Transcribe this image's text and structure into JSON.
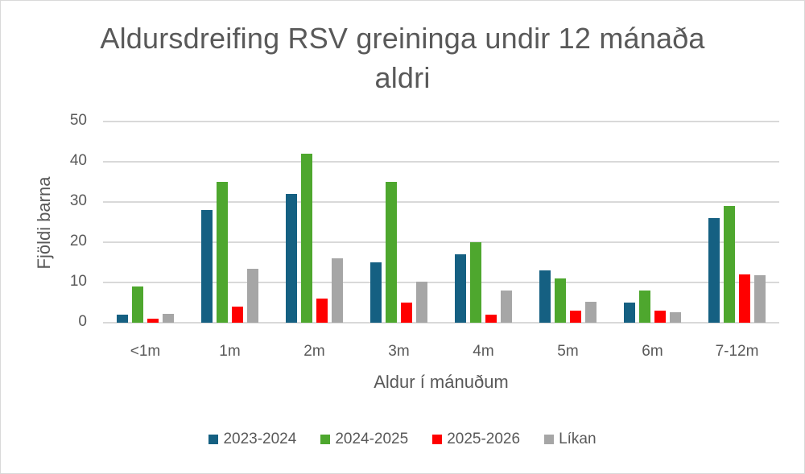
{
  "chart_data": {
    "type": "bar",
    "title": "Aldursdreifing RSV greininga undir 12 mánaða aldri",
    "title_lines": [
      "Aldursdreifing RSV greininga undir 12 mánaða",
      "aldri"
    ],
    "xlabel": "Aldur í mánuðum",
    "ylabel": "Fjöldi barna",
    "ylim": [
      0,
      50
    ],
    "yticks": [
      0,
      10,
      20,
      30,
      40,
      50
    ],
    "grid": true,
    "legend_position": "bottom",
    "categories": [
      "<1m",
      "1m",
      "2m",
      "3m",
      "4m",
      "5m",
      "6m",
      "7-12m"
    ],
    "series": [
      {
        "name": "2023-2024",
        "color": "#156082",
        "values": [
          2,
          28,
          32,
          15,
          17,
          13,
          5,
          26
        ]
      },
      {
        "name": "2024-2025",
        "color": "#4EA72E",
        "values": [
          9,
          35,
          42,
          35,
          20,
          11,
          8,
          29
        ]
      },
      {
        "name": "2025-2026",
        "color": "#FF0000",
        "values": [
          1,
          4,
          6,
          5,
          2,
          3,
          3,
          12
        ]
      },
      {
        "name": "Líkan",
        "color": "#A6A6A6",
        "values": [
          2.2,
          13.4,
          16,
          10.2,
          8,
          5.3,
          2.6,
          11.9
        ]
      }
    ]
  }
}
